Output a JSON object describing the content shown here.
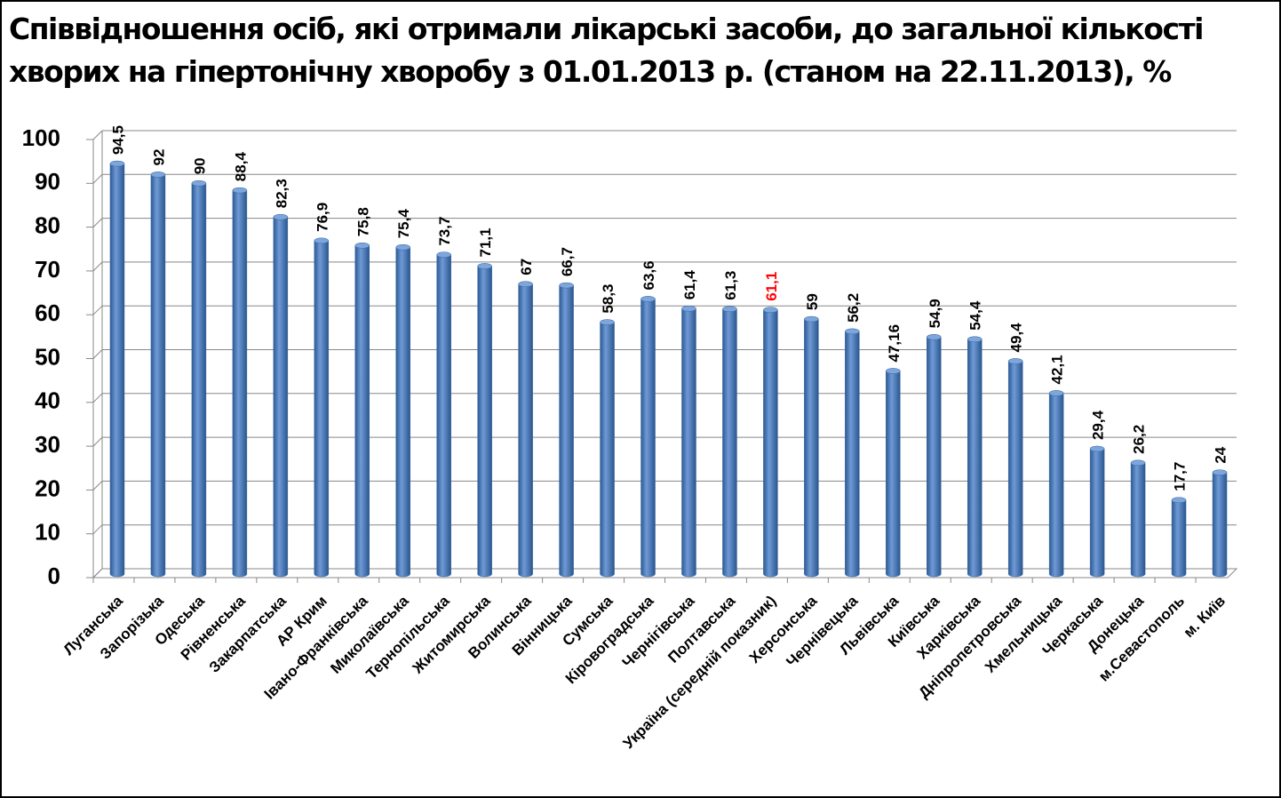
{
  "chart_data": {
    "type": "bar",
    "title": [
      "Співвідношення осіб, які отримали лікарські засоби, до загальної кількості",
      "хворих на гіпертонічну хворобу з 01.01.2013 р. (станом на 22.11.2013), %"
    ],
    "categories": [
      "Луганська",
      "Запорізька",
      "Одеська",
      "Рівненська",
      "Закарпатська",
      "АР Крим",
      "Івано-Франківська",
      "Миколаївська",
      "Тернопільська",
      "Житомирська",
      "Волинська",
      "Вінницька",
      "Сумська",
      "Кіровоградська",
      "Чернігівська",
      "Полтавська",
      "Україна (середній показник)",
      "Херсонська",
      "Чернівецька",
      "Львівська",
      "Київська",
      "Харківська",
      "Дніпропетровська",
      "Хмельницька",
      "Черкаська",
      "Донецька",
      "м.Севастополь",
      "м. Київ"
    ],
    "values": [
      94.5,
      92,
      90,
      88.4,
      82.3,
      76.9,
      75.8,
      75.4,
      73.7,
      71.1,
      67,
      66.7,
      58.3,
      63.6,
      61.4,
      61.3,
      61.1,
      59,
      56.2,
      47.16,
      54.9,
      54.4,
      49.4,
      42.1,
      29.4,
      26.2,
      17.7,
      24
    ],
    "value_labels": [
      "94,5",
      "92",
      "90",
      "88,4",
      "82,3",
      "76,9",
      "75,8",
      "75,4",
      "73,7",
      "71,1",
      "67",
      "66,7",
      "58,3",
      "63,6",
      "61,4",
      "61,3",
      "61,1",
      "59",
      "56,2",
      "47,16",
      "54,9",
      "54,4",
      "49,4",
      "42,1",
      "29,4",
      "26,2",
      "17,7",
      "24"
    ],
    "value_label_colors": [
      "#000000",
      "#000000",
      "#000000",
      "#000000",
      "#000000",
      "#000000",
      "#000000",
      "#000000",
      "#000000",
      "#000000",
      "#000000",
      "#000000",
      "#000000",
      "#000000",
      "#000000",
      "#000000",
      "#ff0000",
      "#000000",
      "#000000",
      "#000000",
      "#000000",
      "#000000",
      "#000000",
      "#000000",
      "#000000",
      "#000000",
      "#000000",
      "#000000"
    ],
    "color": "#4a7ebb",
    "ylim": [
      0,
      100
    ],
    "yticks": [
      0,
      10,
      20,
      30,
      40,
      50,
      60,
      70,
      80,
      90,
      100
    ],
    "grid": true
  }
}
